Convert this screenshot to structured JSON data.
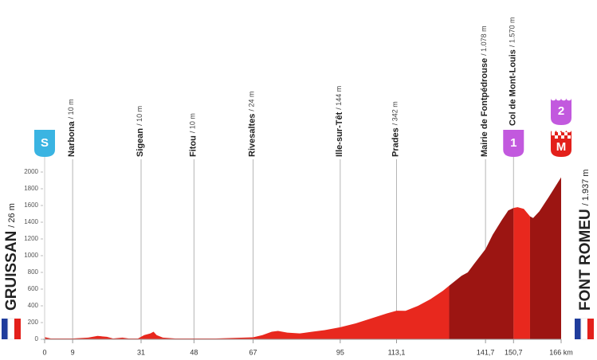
{
  "chart_data": {
    "type": "area",
    "start": {
      "name": "GRUISSAN",
      "elevation": "/ 26 m"
    },
    "finish": {
      "name": "FONT ROMEU",
      "elevation": "/ 1.937 m"
    },
    "x": [
      0,
      2,
      9,
      14,
      17,
      20,
      22,
      25,
      27,
      30,
      32,
      34,
      35,
      36,
      38,
      42,
      48,
      55,
      60,
      67,
      70,
      73,
      75,
      78,
      82,
      86,
      90,
      95,
      100,
      105,
      110,
      113.1,
      116,
      120,
      124,
      128,
      130,
      132,
      134,
      136,
      138,
      141.7,
      144,
      147,
      149,
      150.7,
      152,
      154,
      156,
      157,
      159,
      162,
      166
    ],
    "values": [
      26,
      10,
      10,
      20,
      40,
      30,
      10,
      20,
      10,
      10,
      50,
      70,
      90,
      50,
      20,
      10,
      10,
      10,
      15,
      24,
      50,
      90,
      100,
      80,
      70,
      90,
      110,
      144,
      190,
      250,
      310,
      342,
      340,
      400,
      480,
      580,
      640,
      700,
      760,
      800,
      900,
      1078,
      1250,
      1430,
      1540,
      1570,
      1580,
      1560,
      1470,
      1450,
      1530,
      1700,
      1937
    ],
    "segments": [
      {
        "from": 0,
        "to": 130,
        "color": "#e8281e"
      },
      {
        "from": 130,
        "to": 150.7,
        "color": "#9c1512"
      },
      {
        "from": 150.7,
        "to": 156,
        "color": "#e8281e"
      },
      {
        "from": 156,
        "to": 166,
        "color": "#9c1512"
      }
    ],
    "xlim": [
      0,
      166
    ],
    "ylim": [
      0,
      2000
    ],
    "xticks": [
      0,
      9,
      31,
      48,
      67,
      95,
      {
        "value": 113.1,
        "label": "113,1"
      },
      {
        "value": 141.7,
        "label": "141,7"
      },
      {
        "value": 150.7,
        "label": "150,7"
      },
      {
        "value": 166,
        "label": "166 km"
      }
    ],
    "yticks": [
      0,
      200,
      400,
      600,
      800,
      1000,
      1200,
      1400,
      1600,
      1800,
      2000
    ],
    "grid": false,
    "waypoints": [
      {
        "x": 9,
        "name": "Narbona",
        "elevation": "/ 10 m"
      },
      {
        "x": 31,
        "name": "Sigean",
        "elevation": "/ 10 m"
      },
      {
        "x": 48,
        "name": "Fitou",
        "elevation": "/ 10 m"
      },
      {
        "x": 67,
        "name": "Rivesaltes",
        "elevation": "/ 24 m"
      },
      {
        "x": 95,
        "name": "Ille-sur-Têt",
        "elevation": "/ 144 m"
      },
      {
        "x": 113.1,
        "name": "Prades",
        "elevation": "/ 342 m"
      },
      {
        "x": 141.7,
        "name": "Mairie de Fontpédrouse",
        "elevation": "/ 1.078 m"
      },
      {
        "x": 150.7,
        "name": "Col de Mont-Louis",
        "elevation": "/ 1.570 m"
      }
    ],
    "markers": [
      {
        "x": 0,
        "label": "S",
        "color": "#3ab4e2"
      },
      {
        "x": 150.7,
        "label": "1",
        "color": "#c259de"
      },
      {
        "x": 166,
        "label": "M",
        "color": "#e3201b"
      },
      {
        "x": 166,
        "label": "2",
        "color": "#c259de"
      }
    ]
  }
}
